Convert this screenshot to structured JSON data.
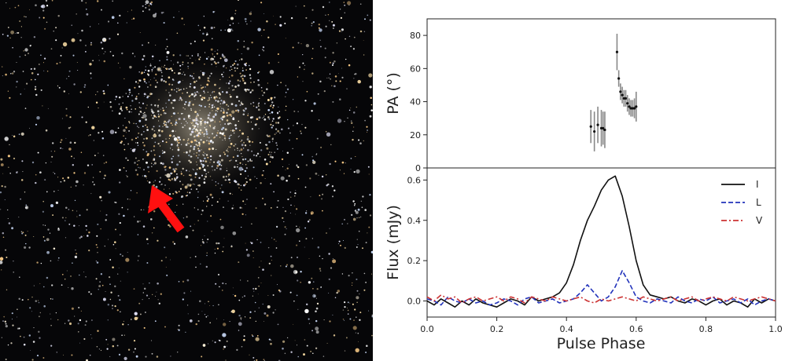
{
  "image": {
    "left_panel": "star-cluster-photo",
    "arrow_color": "#ff1010"
  },
  "chart_data": [
    {
      "type": "scatter",
      "panel": "top",
      "title": "",
      "xlabel": "",
      "ylabel": "PA (°)",
      "xlim": [
        0.0,
        1.0
      ],
      "ylim": [
        0,
        90
      ],
      "yticks": [
        0,
        20,
        40,
        60,
        80
      ],
      "error_bars": true,
      "marker_color": "#111111",
      "errorbar_color": "#888888",
      "series": [
        {
          "x": [
            0.47,
            0.48,
            0.49,
            0.5,
            0.505,
            0.51,
            0.545,
            0.55,
            0.555,
            0.56,
            0.565,
            0.57,
            0.575,
            0.58,
            0.585,
            0.59,
            0.595,
            0.6
          ],
          "y": [
            25,
            22,
            26,
            24,
            24,
            23,
            70,
            54,
            46,
            44,
            42,
            42,
            39,
            37,
            36,
            36,
            36,
            37
          ],
          "err": [
            10,
            12,
            11,
            11,
            10,
            11,
            11,
            5,
            5,
            5,
            5,
            5,
            5,
            5,
            5,
            5,
            6,
            9
          ]
        }
      ]
    },
    {
      "type": "line",
      "panel": "bottom",
      "title": "",
      "xlabel": "Pulse Phase",
      "ylabel": "Flux (mJy)",
      "xlim": [
        0.0,
        1.0
      ],
      "ylim": [
        -0.08,
        0.66
      ],
      "xticks": [
        "0.0",
        "0.2",
        "0.4",
        "0.6",
        "0.8",
        "1.0"
      ],
      "yticks": [
        "0.0",
        "0.2",
        "0.4",
        "0.6"
      ],
      "legend_position": "top-right",
      "x": [
        0.0,
        0.02,
        0.04,
        0.06,
        0.08,
        0.1,
        0.12,
        0.14,
        0.16,
        0.18,
        0.2,
        0.22,
        0.24,
        0.26,
        0.28,
        0.3,
        0.32,
        0.34,
        0.36,
        0.38,
        0.4,
        0.42,
        0.44,
        0.46,
        0.48,
        0.5,
        0.52,
        0.54,
        0.56,
        0.58,
        0.6,
        0.62,
        0.64,
        0.66,
        0.68,
        0.7,
        0.72,
        0.74,
        0.76,
        0.78,
        0.8,
        0.82,
        0.84,
        0.86,
        0.88,
        0.9,
        0.92,
        0.94,
        0.96,
        0.98,
        1.0
      ],
      "series": [
        {
          "name": "I",
          "color": "#111111",
          "dash": "solid",
          "values": [
            0.0,
            -0.02,
            0.01,
            -0.01,
            -0.03,
            0.0,
            -0.02,
            0.01,
            -0.01,
            -0.02,
            -0.03,
            -0.01,
            0.01,
            0.0,
            -0.02,
            0.02,
            0.0,
            0.01,
            0.02,
            0.04,
            0.09,
            0.18,
            0.3,
            0.4,
            0.47,
            0.55,
            0.6,
            0.62,
            0.52,
            0.37,
            0.2,
            0.08,
            0.03,
            0.02,
            0.01,
            0.02,
            0.0,
            -0.01,
            0.01,
            0.0,
            -0.02,
            0.0,
            0.01,
            -0.02,
            0.0,
            -0.01,
            -0.03,
            0.01,
            -0.01,
            0.01,
            0.0
          ]
        },
        {
          "name": "L",
          "color": "#2233bb",
          "dash": "dashed",
          "values": [
            0.01,
            0.0,
            -0.02,
            0.02,
            0.0,
            -0.01,
            0.01,
            -0.01,
            0.0,
            -0.02,
            -0.01,
            0.01,
            0.0,
            -0.02,
            0.01,
            0.02,
            -0.01,
            0.0,
            0.01,
            -0.01,
            0.0,
            0.01,
            0.04,
            0.08,
            0.04,
            0.0,
            0.02,
            0.07,
            0.15,
            0.09,
            0.02,
            0.0,
            -0.01,
            0.01,
            0.0,
            -0.01,
            0.02,
            0.0,
            -0.01,
            0.01,
            0.0,
            0.02,
            -0.01,
            0.0,
            0.01,
            -0.01,
            0.01,
            -0.02,
            0.0,
            0.01,
            0.0
          ]
        },
        {
          "name": "V",
          "color": "#cc3333",
          "dash": "dashdot",
          "values": [
            0.02,
            0.0,
            0.03,
            0.01,
            0.02,
            -0.01,
            0.01,
            0.02,
            0.0,
            0.01,
            0.02,
            0.0,
            0.02,
            0.01,
            -0.01,
            0.02,
            0.01,
            0.0,
            0.02,
            0.01,
            0.0,
            0.01,
            0.02,
            0.0,
            -0.01,
            0.01,
            0.0,
            0.01,
            0.02,
            0.01,
            0.0,
            0.02,
            0.01,
            0.0,
            0.01,
            0.02,
            0.0,
            0.01,
            0.02,
            0.0,
            0.01,
            0.02,
            0.01,
            0.0,
            0.02,
            0.01,
            0.0,
            0.01,
            0.02,
            0.01,
            0.0
          ]
        }
      ]
    }
  ]
}
